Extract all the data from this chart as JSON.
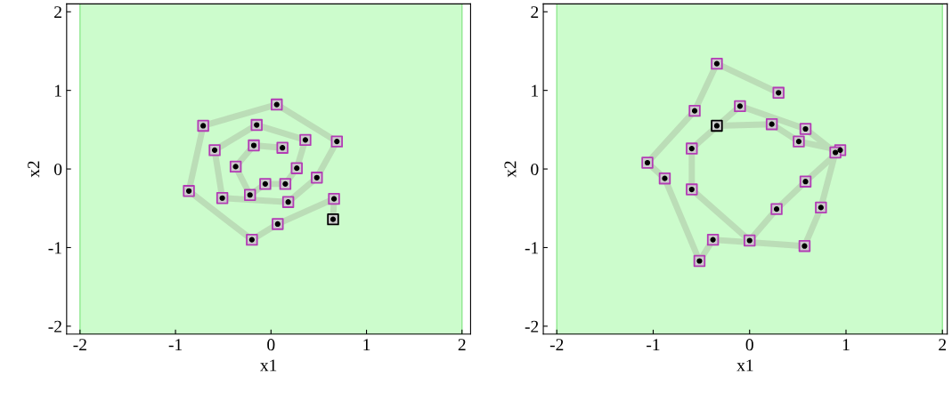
{
  "chart_data": [
    {
      "type": "scatter",
      "xlabel": "x1",
      "ylabel": "x2",
      "xlim": [
        -2.14,
        2.09
      ],
      "ylim": [
        -2.1,
        2.1
      ],
      "xticks": [
        -2,
        -1,
        0,
        1,
        2
      ],
      "yticks": [
        -2,
        -1,
        0,
        1,
        2
      ],
      "grid": false,
      "marker": "square",
      "bands": [
        {
          "axis": "x",
          "from": -2,
          "to": 2,
          "color": "#ccfccc"
        }
      ],
      "series": [
        {
          "type": "line",
          "color": "#b9d9b5",
          "x": [
            0.65,
            0.66,
            0.07,
            -0.2,
            -0.86,
            -0.71,
            0.06,
            0.69,
            0.48,
            0.18,
            -0.51,
            -0.59,
            -0.15,
            0.36,
            0.27,
            0.15,
            -0.06,
            -0.22,
            -0.37,
            -0.18,
            0.12
          ],
          "values": [
            -0.64,
            -0.38,
            -0.7,
            -0.9,
            -0.28,
            0.55,
            0.82,
            0.35,
            -0.11,
            -0.42,
            -0.37,
            0.24,
            0.56,
            0.37,
            0.01,
            -0.19,
            -0.19,
            -0.33,
            0.03,
            0.3,
            0.27
          ]
        },
        {
          "color": "#b23cb4",
          "x": [
            0.66,
            0.07,
            -0.2,
            -0.86,
            -0.71,
            0.06,
            0.69,
            0.48,
            0.18,
            -0.51,
            -0.59,
            -0.15,
            0.36,
            0.27,
            0.15,
            -0.06,
            -0.22,
            -0.37,
            -0.18,
            0.12
          ],
          "values": [
            -0.38,
            -0.7,
            -0.9,
            -0.28,
            0.55,
            0.82,
            0.35,
            -0.11,
            -0.42,
            -0.37,
            0.24,
            0.56,
            0.37,
            0.01,
            -0.19,
            -0.19,
            -0.33,
            0.03,
            0.3,
            0.27
          ]
        },
        {
          "color": "#000000",
          "x": [
            0.65
          ],
          "values": [
            -0.64
          ]
        }
      ]
    },
    {
      "type": "scatter",
      "xlabel": "x1",
      "ylabel": "x2",
      "xlim": [
        -2.14,
        2.05
      ],
      "ylim": [
        -2.1,
        2.1
      ],
      "xticks": [
        -2,
        -1,
        0,
        1,
        2
      ],
      "yticks": [
        -2,
        -1,
        0,
        1,
        2
      ],
      "grid": false,
      "marker": "square",
      "bands": [
        {
          "axis": "x",
          "from": -2,
          "to": 2,
          "color": "#ccfccc"
        }
      ],
      "series": [
        {
          "type": "line",
          "color": "#b9d9b5",
          "x": [
            -0.34,
            0.23,
            0.51,
            0.94,
            0.58,
            0.28,
            0.0,
            -0.6,
            -0.6,
            -0.1,
            0.58,
            0.89,
            0.74,
            0.57,
            -0.38,
            -0.52,
            -0.88,
            -1.06,
            -0.57,
            -0.34,
            0.3
          ],
          "values": [
            0.55,
            0.57,
            0.35,
            0.24,
            -0.16,
            -0.51,
            -0.91,
            -0.26,
            0.26,
            0.8,
            0.51,
            0.21,
            -0.49,
            -0.98,
            -0.9,
            -1.17,
            -0.12,
            0.08,
            0.74,
            1.34,
            0.97
          ]
        },
        {
          "color": "#b23cb4",
          "x": [
            0.23,
            0.51,
            0.94,
            0.58,
            0.28,
            0.0,
            -0.6,
            -0.6,
            -0.1,
            0.58,
            0.89,
            0.74,
            0.57,
            -0.38,
            -0.52,
            -0.88,
            -1.06,
            -0.57,
            -0.34,
            0.3
          ],
          "values": [
            0.57,
            0.35,
            0.24,
            -0.16,
            -0.51,
            -0.91,
            -0.26,
            0.26,
            0.8,
            0.51,
            0.21,
            -0.49,
            -0.98,
            -0.9,
            -1.17,
            -0.12,
            0.08,
            0.74,
            1.34,
            0.97
          ]
        },
        {
          "color": "#000000",
          "x": [
            -0.34
          ],
          "values": [
            0.55
          ]
        }
      ]
    }
  ]
}
